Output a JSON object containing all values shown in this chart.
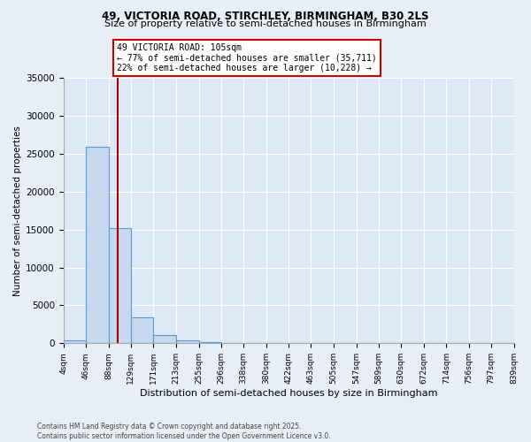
{
  "title1": "49, VICTORIA ROAD, STIRCHLEY, BIRMINGHAM, B30 2LS",
  "title2": "Size of property relative to semi-detached houses in Birmingham",
  "xlabel": "Distribution of semi-detached houses by size in Birmingham",
  "ylabel": "Number of semi-detached properties",
  "bin_edges": [
    4,
    46,
    88,
    129,
    171,
    213,
    255,
    296,
    338,
    380,
    422,
    463,
    505,
    547,
    589,
    630,
    672,
    714,
    756,
    797,
    839
  ],
  "bar_heights": [
    400,
    26000,
    15200,
    3400,
    1100,
    400,
    150,
    60,
    25,
    10,
    6,
    4,
    2,
    1,
    1,
    0,
    0,
    0,
    0,
    0
  ],
  "bar_color": "#c5d8ee",
  "bar_edge_color": "#5b9bd5",
  "property_size": 105,
  "vline_color": "#aa0000",
  "annotation_text": "49 VICTORIA ROAD: 105sqm\n← 77% of semi-detached houses are smaller (35,711)\n22% of semi-detached houses are larger (10,228) →",
  "annotation_box_color": "#ffffff",
  "annotation_box_edge": "#cc0000",
  "ylim": [
    0,
    35000
  ],
  "yticks": [
    0,
    5000,
    10000,
    15000,
    20000,
    25000,
    30000,
    35000
  ],
  "footnote": "Contains HM Land Registry data © Crown copyright and database right 2025.\nContains public sector information licensed under the Open Government Licence v3.0.",
  "bg_color": "#e8eef5",
  "plot_bg_color": "#dce8f5",
  "grid_color": "#ffffff",
  "title1_fontsize": 8.5,
  "title2_fontsize": 8.0
}
